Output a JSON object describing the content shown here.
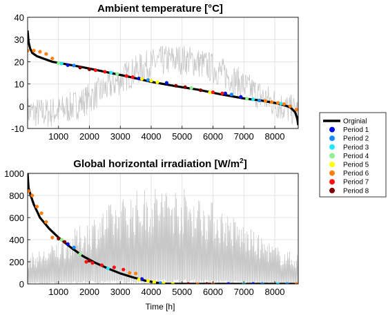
{
  "chart_data": [
    {
      "type": "line",
      "title": "Ambient temperature [°C]",
      "xlabel": "",
      "ylabel": "",
      "xlim": [
        0,
        8760
      ],
      "ylim": [
        -10,
        40
      ],
      "x_ticks": [
        1000,
        2000,
        3000,
        4000,
        5000,
        6000,
        7000,
        8000
      ],
      "y_ticks": [
        -10,
        0,
        10,
        20,
        30,
        40
      ],
      "grid": true,
      "series": [
        {
          "name": "Orginial",
          "x": [
            0,
            30,
            80,
            150,
            300,
            500,
            800,
            1200,
            1800,
            2500,
            3200,
            4000,
            4800,
            5500,
            6200,
            7000,
            7600,
            8000,
            8300,
            8500,
            8650,
            8720,
            8760
          ],
          "y": [
            34,
            29,
            26,
            24,
            22.5,
            21.5,
            20,
            19,
            17.5,
            15.5,
            13.5,
            11,
            9,
            7.5,
            5.5,
            3.5,
            2.5,
            1.5,
            0.5,
            -0.5,
            -2.5,
            -5,
            -8.5
          ]
        },
        {
          "name": "Period 1",
          "color": "#0010e0",
          "x": [
            1300,
            3600,
            4500,
            6400,
            6900
          ],
          "y": [
            18.5,
            12.5,
            10.5,
            5.8,
            4.2
          ]
        },
        {
          "name": "Period 2",
          "color": "#1888ff",
          "x": [
            1500,
            3900,
            6600,
            7500
          ],
          "y": [
            18.3,
            11.8,
            5.3,
            2.6
          ]
        },
        {
          "name": "Period 3",
          "color": "#20e8ff",
          "x": [
            1100,
            2700,
            7300,
            8200
          ],
          "y": [
            19.2,
            15.1,
            3.1,
            1.2
          ]
        },
        {
          "name": "Period 4",
          "color": "#90f090",
          "x": [
            1000,
            2900,
            5300,
            7100
          ],
          "y": [
            19.4,
            14.5,
            8.2,
            3.4
          ]
        },
        {
          "name": "Period 5",
          "color": "#ffff00",
          "x": [
            3700,
            4000,
            4200,
            5900
          ],
          "y": [
            12.3,
            11.5,
            10.8,
            6.2
          ]
        },
        {
          "name": "Period 6",
          "color": "#ff8010",
          "x": [
            0,
            200,
            400,
            600,
            800,
            7700,
            7900,
            8100,
            8300,
            8500,
            8700
          ],
          "y": [
            25,
            25,
            24.5,
            23.5,
            21.5,
            2.4,
            1.9,
            1.5,
            1,
            0,
            -1.5
          ]
        },
        {
          "name": "Period 7",
          "color": "#ff1010",
          "x": [
            2200,
            2500,
            3200,
            3400,
            6000,
            6300
          ],
          "y": [
            16.2,
            15.5,
            13.6,
            13.1,
            6.3,
            5.8
          ]
        },
        {
          "name": "Period 8",
          "color": "#800000",
          "x": [
            1700,
            2000,
            4800,
            5100,
            5600
          ],
          "y": [
            17.4,
            16.6,
            9.2,
            8.6,
            7.2
          ]
        }
      ]
    },
    {
      "type": "line",
      "title": "Global horizontal irradiation [W/m",
      "title_sup": "2",
      "title_end": "]",
      "xlabel": "Time [h]",
      "ylabel": "",
      "xlim": [
        0,
        8760
      ],
      "ylim": [
        0,
        1000
      ],
      "x_ticks": [
        1000,
        2000,
        3000,
        4000,
        5000,
        6000,
        7000,
        8000
      ],
      "y_ticks": [
        0,
        200,
        400,
        600,
        800,
        1000
      ],
      "grid": true,
      "series": [
        {
          "name": "Orginial",
          "x": [
            0,
            30,
            100,
            200,
            400,
            700,
            1000,
            1400,
            1800,
            2200,
            2600,
            3000,
            3400,
            3800,
            4200,
            4500,
            5000,
            6000,
            7000,
            8000,
            8760
          ],
          "y": [
            1000,
            870,
            800,
            720,
            600,
            500,
            420,
            330,
            250,
            190,
            140,
            95,
            60,
            30,
            10,
            2,
            0,
            0,
            0,
            0,
            0
          ]
        },
        {
          "name": "Period 1",
          "color": "#0010e0",
          "x": [
            1300,
            3700,
            6500,
            7300
          ],
          "y": [
            360,
            45,
            0,
            0
          ]
        },
        {
          "name": "Period 2",
          "color": "#1888ff",
          "x": [
            1500,
            4300,
            7600,
            8400
          ],
          "y": [
            330,
            8,
            0,
            0
          ]
        },
        {
          "name": "Period 3",
          "color": "#20e8ff",
          "x": [
            2600,
            7000,
            8100
          ],
          "y": [
            140,
            0,
            0
          ]
        },
        {
          "name": "Period 4",
          "color": "#90f090",
          "x": [
            1100,
            1700,
            4100
          ],
          "y": [
            400,
            270,
            12
          ]
        },
        {
          "name": "Period 5",
          "color": "#ffff00",
          "x": [
            3600,
            3900,
            4100,
            4400,
            4700
          ],
          "y": [
            40,
            28,
            18,
            6,
            2
          ]
        },
        {
          "name": "Period 6",
          "color": "#ff8010",
          "x": [
            30,
            150,
            300,
            450,
            600,
            800,
            3300,
            3500,
            5500,
            6000,
            8700
          ],
          "y": [
            840,
            800,
            700,
            640,
            560,
            420,
            100,
            95,
            0,
            0,
            0
          ]
        },
        {
          "name": "Period 7",
          "color": "#ff1010",
          "x": [
            1900,
            2100,
            2400,
            2800,
            3100
          ],
          "y": [
            200,
            190,
            170,
            150,
            130
          ]
        },
        {
          "name": "Period 8",
          "color": "#800000",
          "x": [
            1000,
            1200,
            2000,
            5200,
            5800
          ],
          "y": [
            410,
            380,
            210,
            0,
            0
          ]
        }
      ]
    }
  ],
  "legend": {
    "position": "right",
    "items": [
      {
        "label": "Orginial",
        "color": "#000000",
        "kind": "line"
      },
      {
        "label": "Period 1",
        "color": "#0010e0",
        "kind": "dot"
      },
      {
        "label": "Period 2",
        "color": "#1888ff",
        "kind": "dot"
      },
      {
        "label": "Period 3",
        "color": "#20e8ff",
        "kind": "dot"
      },
      {
        "label": "Period 4",
        "color": "#90f090",
        "kind": "dot"
      },
      {
        "label": "Period 5",
        "color": "#ffff00",
        "kind": "dot"
      },
      {
        "label": "Period 6",
        "color": "#ff8010",
        "kind": "dot"
      },
      {
        "label": "Period 7",
        "color": "#ff1010",
        "kind": "dot"
      },
      {
        "label": "Period 8",
        "color": "#800000",
        "kind": "dot"
      }
    ]
  },
  "colors": {
    "chronological_series": "#c8c8c8",
    "grid": "#dcdcdc",
    "original_line": "#000000"
  }
}
